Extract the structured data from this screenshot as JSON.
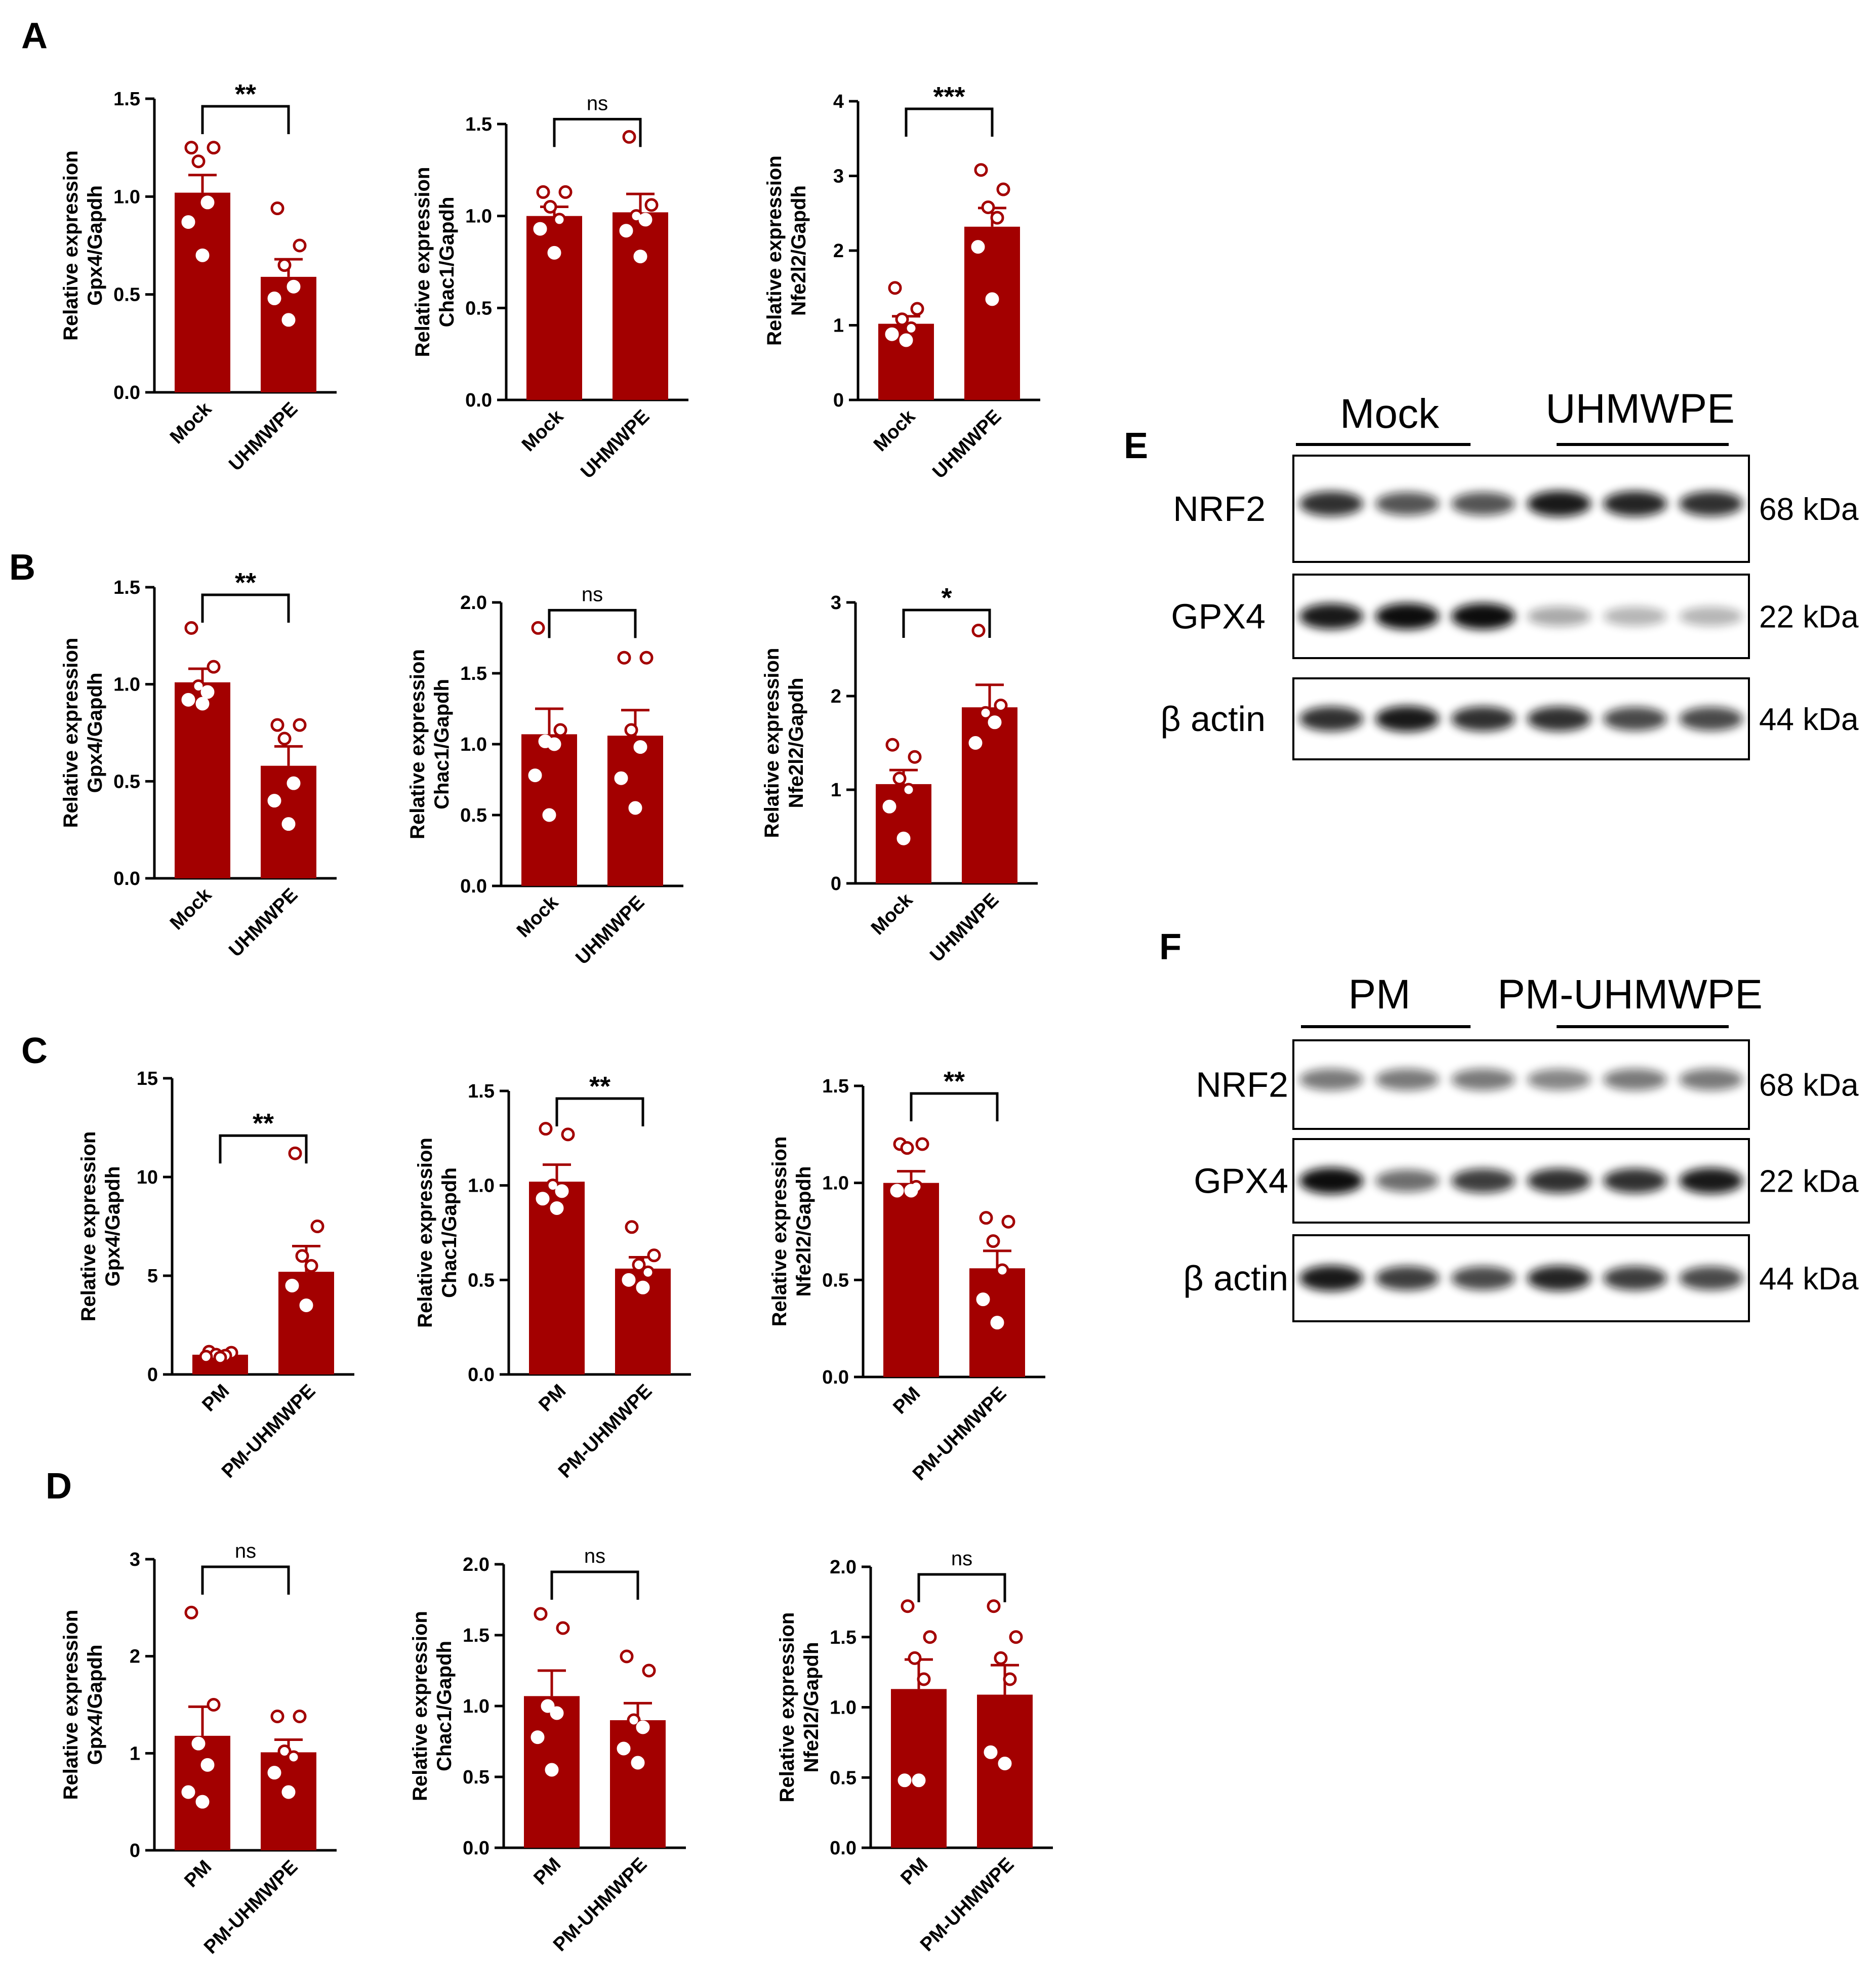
{
  "colors": {
    "bar": "#a30000",
    "dot": "#ffffff",
    "dot_stroke": "#a30000",
    "axis": "#000000"
  },
  "panels": {
    "A": "A",
    "B": "B",
    "C": "C",
    "D": "D",
    "E": "E",
    "F": "F"
  },
  "chart_data": [
    {
      "id": "A1",
      "panel": "A",
      "type": "bar",
      "ylabel": "Relative expression\nGpx4/Gapdh",
      "categories": [
        "Mock",
        "UHMWPE"
      ],
      "values": [
        1.02,
        0.59
      ],
      "sem": [
        0.09,
        0.09
      ],
      "points": [
        [
          1.25,
          1.25,
          1.18,
          0.97,
          0.87,
          0.7
        ],
        [
          0.94,
          0.75,
          0.65,
          0.54,
          0.48,
          0.37
        ]
      ],
      "ylim": [
        0,
        1.5
      ],
      "yticks": [
        0.0,
        0.5,
        1.0,
        1.5
      ],
      "tick_labels": [
        "0.0",
        "0.5",
        "1.0",
        "1.5"
      ],
      "significance": "**"
    },
    {
      "id": "A2",
      "panel": "A",
      "type": "bar",
      "ylabel": "Relative expression\nChac1/Gapdh",
      "categories": [
        "Mock",
        "UHMWPE"
      ],
      "values": [
        1.0,
        1.02
      ],
      "sem": [
        0.05,
        0.1
      ],
      "points": [
        [
          1.13,
          1.13,
          1.05,
          0.98,
          0.93,
          0.8
        ],
        [
          1.43,
          1.06,
          1.0,
          0.98,
          0.92,
          0.78
        ]
      ],
      "ylim": [
        0,
        1.5
      ],
      "yticks": [
        0.0,
        0.5,
        1.0,
        1.5
      ],
      "tick_labels": [
        "0.0",
        "0.5",
        "1.0",
        "1.5"
      ],
      "significance": "ns"
    },
    {
      "id": "A3",
      "panel": "A",
      "type": "bar",
      "ylabel": "Relative expression\nNfe2l2/Gapdh",
      "categories": [
        "Mock",
        "UHMWPE"
      ],
      "values": [
        1.02,
        2.32
      ],
      "sem": [
        0.1,
        0.25
      ],
      "points": [
        [
          1.5,
          1.22,
          1.08,
          0.96,
          0.88,
          0.8
        ],
        [
          3.08,
          2.82,
          2.58,
          2.44,
          2.05,
          1.35
        ]
      ],
      "ylim": [
        0,
        4
      ],
      "yticks": [
        0,
        1,
        2,
        3,
        4
      ],
      "tick_labels": [
        "0",
        "1",
        "2",
        "3",
        "4"
      ],
      "significance": "***"
    },
    {
      "id": "B1",
      "panel": "B",
      "type": "bar",
      "ylabel": "Relative expression\nGpx4/Gapdh",
      "categories": [
        "Mock",
        "UHMWPE"
      ],
      "values": [
        1.01,
        0.58
      ],
      "sem": [
        0.07,
        0.1
      ],
      "points": [
        [
          1.29,
          1.09,
          0.99,
          0.96,
          0.92,
          0.9
        ],
        [
          0.79,
          0.79,
          0.72,
          0.49,
          0.4,
          0.28
        ]
      ],
      "ylim": [
        0,
        1.5
      ],
      "yticks": [
        0.0,
        0.5,
        1.0,
        1.5
      ],
      "tick_labels": [
        "0.0",
        "0.5",
        "1.0",
        "1.5"
      ],
      "significance": "**"
    },
    {
      "id": "B2",
      "panel": "B",
      "type": "bar",
      "ylabel": "Relative expression\nChac1/Gapdh",
      "categories": [
        "Mock",
        "UHMWPE"
      ],
      "values": [
        1.07,
        1.06
      ],
      "sem": [
        0.18,
        0.18
      ],
      "points": [
        [
          1.82,
          1.1,
          1.02,
          1.0,
          0.78,
          0.5
        ],
        [
          1.61,
          1.61,
          1.1,
          0.98,
          0.76,
          0.55
        ]
      ],
      "ylim": [
        0,
        2.0
      ],
      "yticks": [
        0.0,
        0.5,
        1.0,
        1.5,
        2.0
      ],
      "tick_labels": [
        "0.0",
        "0.5",
        "1.0",
        "1.5",
        "2.0"
      ],
      "significance": "ns"
    },
    {
      "id": "B3",
      "panel": "B",
      "type": "bar",
      "ylabel": "Relative expression\nNfe2l2/Gapdh",
      "categories": [
        "Mock",
        "UHMWPE"
      ],
      "values": [
        1.06,
        1.88
      ],
      "sem": [
        0.15,
        0.24
      ],
      "points": [
        [
          1.48,
          1.35,
          1.12,
          1.0,
          0.82,
          0.48
        ],
        [
          2.7,
          1.9,
          1.82,
          1.72,
          1.5
        ]
      ],
      "ylim": [
        0,
        3
      ],
      "yticks": [
        0,
        1,
        2,
        3
      ],
      "tick_labels": [
        "0",
        "1",
        "2",
        "3"
      ],
      "significance": "*"
    },
    {
      "id": "C1",
      "panel": "C",
      "type": "bar",
      "ylabel": "Relative expression\nGpx4/Gapdh",
      "categories": [
        "PM",
        "PM-UHMWPE"
      ],
      "values": [
        1.0,
        5.2
      ],
      "sem": [
        0.05,
        1.3
      ],
      "points": [
        [
          1.15,
          1.1,
          1.0,
          0.95,
          0.9,
          0.85
        ],
        [
          11.2,
          7.5,
          6.0,
          5.5,
          4.5,
          3.5
        ]
      ],
      "ylim": [
        0,
        15
      ],
      "yticks": [
        0,
        5,
        10,
        15
      ],
      "tick_labels": [
        "0",
        "5",
        "10",
        "15"
      ],
      "significance": "**"
    },
    {
      "id": "C2",
      "panel": "C",
      "type": "bar",
      "ylabel": "Relative expression\nChac1/Gapdh",
      "categories": [
        "PM",
        "PM-UHMWPE"
      ],
      "values": [
        1.02,
        0.56
      ],
      "sem": [
        0.09,
        0.06
      ],
      "points": [
        [
          1.3,
          1.27,
          1.0,
          0.97,
          0.93,
          0.88
        ],
        [
          0.78,
          0.63,
          0.58,
          0.54,
          0.5,
          0.46
        ]
      ],
      "ylim": [
        0,
        1.5
      ],
      "yticks": [
        0.0,
        0.5,
        1.0,
        1.5
      ],
      "tick_labels": [
        "0.0",
        "0.5",
        "1.0",
        "1.5"
      ],
      "significance": "**"
    },
    {
      "id": "C3",
      "panel": "C",
      "type": "bar",
      "ylabel": "Relative expression\nNfe2l2/Gapdh",
      "categories": [
        "PM",
        "PM-UHMWPE"
      ],
      "values": [
        1.0,
        0.56
      ],
      "sem": [
        0.06,
        0.09
      ],
      "points": [
        [
          1.2,
          1.2,
          1.18,
          0.98,
          0.96,
          0.96
        ],
        [
          0.82,
          0.8,
          0.7,
          0.55,
          0.4,
          0.28
        ]
      ],
      "ylim": [
        0,
        1.5
      ],
      "yticks": [
        0.0,
        0.5,
        1.0,
        1.5
      ],
      "tick_labels": [
        "0.0",
        "0.5",
        "1.0",
        "1.5"
      ],
      "significance": "**"
    },
    {
      "id": "D1",
      "panel": "D",
      "type": "bar",
      "ylabel": "Relative expression\nGpx4/Gapdh",
      "categories": [
        "PM",
        "PM-UHMWPE"
      ],
      "values": [
        1.18,
        1.01
      ],
      "sem": [
        0.3,
        0.13
      ],
      "points": [
        [
          2.45,
          1.5,
          1.1,
          0.88,
          0.6,
          0.5
        ],
        [
          1.38,
          1.38,
          1.02,
          0.96,
          0.8,
          0.6
        ]
      ],
      "ylim": [
        0,
        3
      ],
      "yticks": [
        0,
        1,
        2,
        3
      ],
      "tick_labels": [
        "0",
        "1",
        "2",
        "3"
      ],
      "significance": "ns"
    },
    {
      "id": "D2",
      "panel": "D",
      "type": "bar",
      "ylabel": "Relative expression\nChac1/Gapdh",
      "categories": [
        "PM",
        "PM-UHMWPE"
      ],
      "values": [
        1.07,
        0.9
      ],
      "sem": [
        0.18,
        0.12
      ],
      "points": [
        [
          1.65,
          1.55,
          1.0,
          0.95,
          0.78,
          0.55
        ],
        [
          1.35,
          1.25,
          0.9,
          0.85,
          0.7,
          0.6
        ]
      ],
      "ylim": [
        0,
        2.0
      ],
      "yticks": [
        0.0,
        0.5,
        1.0,
        1.5,
        2.0
      ],
      "tick_labels": [
        "0.0",
        "0.5",
        "1.0",
        "1.5",
        "2.0"
      ],
      "significance": "ns"
    },
    {
      "id": "D3",
      "panel": "D",
      "type": "bar",
      "ylabel": "Relative expression\nNfe2l2/Gapdh",
      "categories": [
        "PM",
        "PM-UHMWPE"
      ],
      "values": [
        1.13,
        1.09
      ],
      "sem": [
        0.21,
        0.21
      ],
      "points": [
        [
          1.72,
          1.5,
          1.35,
          1.2,
          0.48,
          0.48
        ],
        [
          1.72,
          1.5,
          1.35,
          1.2,
          0.68,
          0.6
        ]
      ],
      "ylim": [
        0,
        2.0
      ],
      "yticks": [
        0.0,
        0.5,
        1.0,
        1.5,
        2.0
      ],
      "tick_labels": [
        "0.0",
        "0.5",
        "1.0",
        "1.5",
        "2.0"
      ],
      "significance": "ns"
    }
  ],
  "blots": [
    {
      "id": "E",
      "group1": "Mock",
      "group2": "UHMWPE",
      "rows": [
        {
          "label": "NRF2",
          "kda": "68 kDa",
          "intensity": [
            0.85,
            0.7,
            0.7,
            0.95,
            0.9,
            0.85
          ]
        },
        {
          "label": "GPX4",
          "kda": "22 kDa",
          "intensity": [
            0.95,
            1.0,
            1.0,
            0.35,
            0.3,
            0.3
          ]
        },
        {
          "label": "β actin",
          "kda": "44 kDa",
          "intensity": [
            0.85,
            0.95,
            0.85,
            0.85,
            0.75,
            0.75
          ]
        }
      ]
    },
    {
      "id": "F",
      "group1": "PM",
      "group2": "PM-UHMWPE",
      "rows": [
        {
          "label": "NRF2",
          "kda": "68 kDa",
          "intensity": [
            0.55,
            0.55,
            0.55,
            0.5,
            0.55,
            0.55
          ]
        },
        {
          "label": "GPX4",
          "kda": "22 kDa",
          "intensity": [
            1.0,
            0.6,
            0.8,
            0.85,
            0.85,
            0.95
          ]
        },
        {
          "label": "β actin",
          "kda": "44 kDa",
          "intensity": [
            0.95,
            0.8,
            0.75,
            0.9,
            0.8,
            0.75
          ]
        }
      ]
    }
  ]
}
